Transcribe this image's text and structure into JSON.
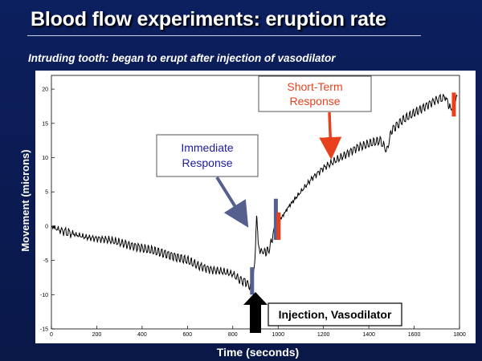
{
  "slide": {
    "title": "Blood flow experiments: eruption rate",
    "subtitle": "Intruding tooth: began to erupt after injection of vasodilator"
  },
  "chart_data": {
    "type": "line",
    "xlabel": "Time (seconds)",
    "ylabel": "Movement (microns)",
    "xlim": [
      0,
      1800
    ],
    "ylim": [
      -15,
      22
    ],
    "xticks": [
      0,
      200,
      400,
      600,
      800,
      1000,
      1200,
      1400,
      1600,
      1800
    ],
    "yticks": [
      -15,
      -10,
      -5,
      0,
      5,
      10,
      15,
      20
    ],
    "series": [
      {
        "color": "#000000",
        "x": [
          0,
          30,
          60,
          100,
          150,
          200,
          250,
          300,
          350,
          400,
          450,
          500,
          550,
          600,
          650,
          700,
          750,
          800,
          830,
          860,
          880,
          895,
          900,
          905,
          908,
          912,
          920,
          940,
          960,
          980,
          990,
          1000,
          1050,
          1100,
          1150,
          1200,
          1250,
          1300,
          1350,
          1400,
          1450,
          1480,
          1500,
          1550,
          1600,
          1650,
          1700,
          1740,
          1760,
          1775,
          1790
        ],
        "y": [
          0,
          -0.5,
          -0.8,
          -1.2,
          -1.6,
          -1.8,
          -2.0,
          -2.4,
          -2.8,
          -3.2,
          -3.6,
          -4.0,
          -4.5,
          -5.0,
          -5.8,
          -6.3,
          -6.6,
          -7.0,
          -7.8,
          -8.2,
          -9.0,
          -6.5,
          -3.0,
          2.0,
          0.0,
          -2.5,
          -3.6,
          -3.8,
          -3.5,
          -1.0,
          -0.2,
          0.5,
          3.0,
          5.0,
          7.0,
          8.5,
          9.5,
          10.5,
          11.5,
          12.0,
          12.5,
          11.0,
          14.0,
          15.5,
          16.5,
          17.5,
          18.5,
          18.8,
          17.0,
          18.0,
          19.0
        ]
      }
    ],
    "annotations": [
      {
        "id": "immediate",
        "text": [
          "Immediate",
          "Response"
        ],
        "color": "#1c1c9e"
      },
      {
        "id": "shortterm",
        "text": [
          "Short-Term",
          "Response"
        ],
        "color": "#e8401c"
      },
      {
        "id": "injection",
        "text": [
          "Injection, Vasodilator"
        ],
        "color": "#000000"
      }
    ],
    "markers": [
      {
        "x": 885,
        "y1": -10,
        "y2": -6,
        "color": "#55608e"
      },
      {
        "x": 990,
        "y1": -2,
        "y2": 4,
        "color": "#55608e"
      },
      {
        "x": 1002,
        "y1": -2,
        "y2": 2,
        "color": "#e8401c"
      },
      {
        "x": 1775,
        "y1": 16,
        "y2": 19.5,
        "color": "#e8401c"
      }
    ],
    "colors": {
      "background": "#0c1f5e",
      "plot": "#ffffff",
      "immediate_arrow": "#55608e",
      "shortterm_arrow": "#e8401c"
    }
  }
}
